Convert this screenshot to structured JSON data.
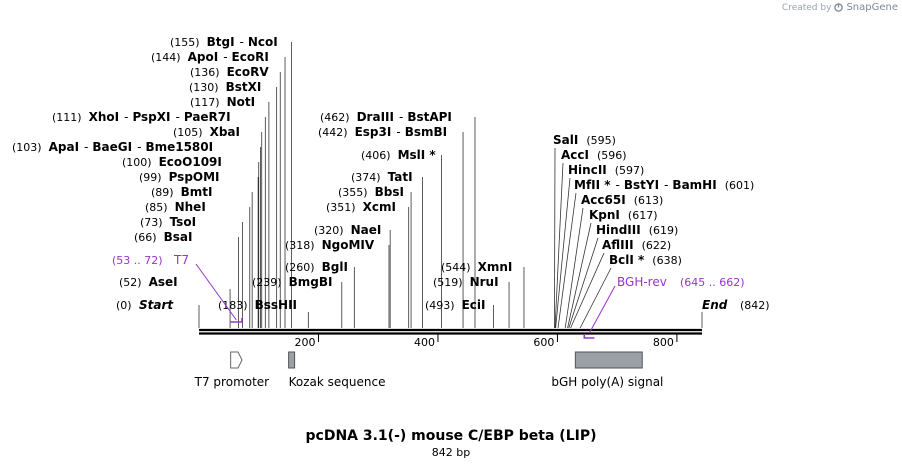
{
  "credit": {
    "prefix": "Created by",
    "brand": "SnapGene"
  },
  "title": "pcDNA 3.1(-) mouse C/EBP beta (LIP)",
  "subtitle": "842 bp",
  "colors": {
    "primer": "#9933cc",
    "feature": "#9aa0a6",
    "line": "#000000"
  },
  "sequence": {
    "length": 842,
    "ticks": [
      {
        "pos": 200,
        "label": "200"
      },
      {
        "pos": 400,
        "label": "400"
      },
      {
        "pos": 600,
        "label": "600"
      },
      {
        "pos": 800,
        "label": "800"
      }
    ]
  },
  "markers": [
    {
      "pos": "(0)",
      "name": "Start",
      "bp": 0
    },
    {
      "pos": "(842)",
      "name": "End",
      "bp": 842
    }
  ],
  "enzymes": [
    {
      "pos": "(155)",
      "name": "BtgI",
      "extra": [
        "NcoI"
      ],
      "bp": 155
    },
    {
      "pos": "(144)",
      "name": "ApoI",
      "extra": [
        "EcoRI"
      ],
      "bp": 144
    },
    {
      "pos": "(136)",
      "name": "EcoRV",
      "extra": [],
      "bp": 136
    },
    {
      "pos": "(130)",
      "name": "BstXI",
      "extra": [],
      "bp": 130
    },
    {
      "pos": "(117)",
      "name": "NotI",
      "extra": [],
      "bp": 117
    },
    {
      "pos": "(111)",
      "name": "XhoI",
      "extra": [
        "PspXI",
        "PaeR7I"
      ],
      "bp": 111
    },
    {
      "pos": "(105)",
      "name": "XbaI",
      "extra": [],
      "bp": 105
    },
    {
      "pos": "(103)",
      "name": "ApaI",
      "extra": [
        "BaeGI",
        "Bme1580I"
      ],
      "bp": 103
    },
    {
      "pos": "(100)",
      "name": "EcoO109I",
      "extra": [],
      "bp": 100
    },
    {
      "pos": "(99)",
      "name": "PspOMI",
      "extra": [],
      "bp": 99
    },
    {
      "pos": "(89)",
      "name": "BmtI",
      "extra": [],
      "bp": 89
    },
    {
      "pos": "(85)",
      "name": "NheI",
      "extra": [],
      "bp": 85
    },
    {
      "pos": "(73)",
      "name": "TsoI",
      "extra": [],
      "bp": 73
    },
    {
      "pos": "(66)",
      "name": "BsaI",
      "extra": [],
      "bp": 66
    },
    {
      "pos": "(52)",
      "name": "AseI",
      "extra": [],
      "bp": 52
    },
    {
      "pos": "(183)",
      "name": "BssHII",
      "extra": [],
      "bp": 183
    },
    {
      "pos": "(239)",
      "name": "BmgBI",
      "extra": [],
      "bp": 239
    },
    {
      "pos": "(260)",
      "name": "BglI",
      "extra": [],
      "bp": 260
    },
    {
      "pos": "(318)",
      "name": "NgoMIV",
      "extra": [],
      "bp": 318
    },
    {
      "pos": "(320)",
      "name": "NaeI",
      "extra": [],
      "bp": 320
    },
    {
      "pos": "(351)",
      "name": "XcmI",
      "extra": [],
      "bp": 351
    },
    {
      "pos": "(355)",
      "name": "BbsI",
      "extra": [],
      "bp": 355
    },
    {
      "pos": "(374)",
      "name": "TatI",
      "extra": [],
      "bp": 374
    },
    {
      "pos": "(406)",
      "name": "MslI *",
      "extra": [],
      "bp": 406
    },
    {
      "pos": "(442)",
      "name": "Esp3I",
      "extra": [
        "BsmBI"
      ],
      "bp": 442
    },
    {
      "pos": "(462)",
      "name": "DraIII",
      "extra": [
        "BstAPI"
      ],
      "bp": 462
    },
    {
      "pos": "(493)",
      "name": "EciI",
      "extra": [],
      "bp": 493
    },
    {
      "pos": "(519)",
      "name": "NruI",
      "extra": [],
      "bp": 519
    },
    {
      "pos": "(544)",
      "name": "XmnI",
      "extra": [],
      "bp": 544
    },
    {
      "pos": "(595)",
      "name": "SalI",
      "extra": [],
      "bp": 595
    },
    {
      "pos": "(596)",
      "name": "AccI",
      "extra": [],
      "bp": 596
    },
    {
      "pos": "(597)",
      "name": "HincII",
      "extra": [],
      "bp": 597
    },
    {
      "pos": "(601)",
      "name": "MfII *",
      "extra": [
        "BstYI",
        "BamHI"
      ],
      "bp": 601
    },
    {
      "pos": "(613)",
      "name": "Acc65I",
      "extra": [],
      "bp": 613
    },
    {
      "pos": "(617)",
      "name": "KpnI",
      "extra": [],
      "bp": 617
    },
    {
      "pos": "(619)",
      "name": "HindIII",
      "extra": [],
      "bp": 619
    },
    {
      "pos": "(622)",
      "name": "AflIII",
      "extra": [],
      "bp": 622
    },
    {
      "pos": "(638)",
      "name": "BclI *",
      "extra": [],
      "bp": 638
    }
  ],
  "primers": [
    {
      "range": "(53 .. 72)",
      "name": "T7",
      "start": 53,
      "end": 72,
      "direction": "forward"
    },
    {
      "range": "(645 .. 662)",
      "name": "BGH-rev",
      "start": 645,
      "end": 662,
      "direction": "reverse"
    }
  ],
  "features": [
    {
      "name": "T7 promoter",
      "start": 53,
      "end": 72,
      "shape": "arrow"
    },
    {
      "name": "Kozak sequence",
      "start": 150,
      "end": 160,
      "shape": "box"
    },
    {
      "name": "bGH poly(A) signal",
      "start": 630,
      "end": 742,
      "shape": "box"
    }
  ]
}
